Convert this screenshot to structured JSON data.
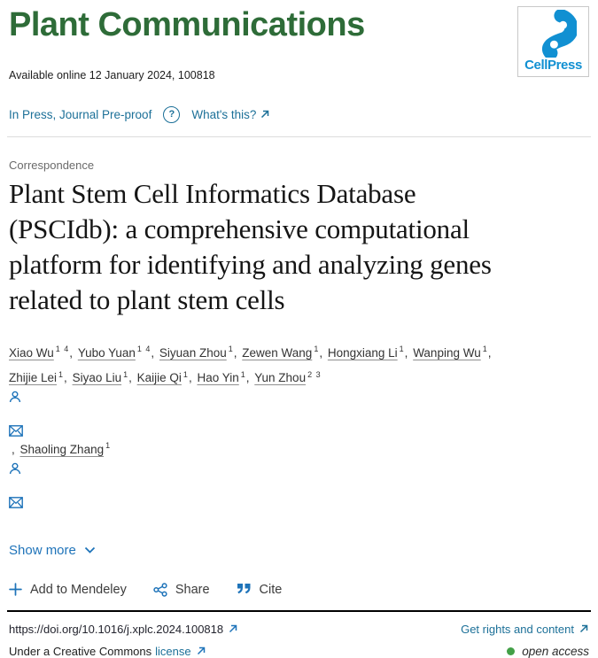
{
  "journal": {
    "name": "Plant Communications",
    "availability": "Available online 12 January 2024, 100818",
    "publisher": "CellPress"
  },
  "status_bar": {
    "in_press_label": "In Press, Journal Pre-proof",
    "help_icon": "question-circle-icon",
    "whats_this_label": "What's this?"
  },
  "article": {
    "section_label": "Correspondence",
    "title_lines": {
      "0": "Plant Stem Cell Informatics Database",
      "1": "(PSCIdb): a comprehensive computational",
      "2": "platform for identifying and analyzing genes",
      "3": "related to plant stem cells"
    },
    "authors": [
      {
        "name": "Xiao Wu",
        "sup": "1 4",
        "sep": ", "
      },
      {
        "name": "Yubo Yuan",
        "sup": "1 4",
        "sep": ", "
      },
      {
        "name": "Siyuan Zhou",
        "sup": "1",
        "sep": ", "
      },
      {
        "name": "Zewen Wang",
        "sup": "1",
        "sep": ", "
      },
      {
        "name": "Hongxiang Li",
        "sup": "1",
        "sep": ", "
      },
      {
        "name": "Wanping Wu",
        "sup": "1",
        "sep": ", ",
        "break_after": true
      },
      {
        "name": "Zhijie Lei",
        "sup": "1",
        "sep": ", "
      },
      {
        "name": "Siyao Liu",
        "sup": "1",
        "sep": ", "
      },
      {
        "name": "Kaijie Qi",
        "sup": "1",
        "sep": ", "
      },
      {
        "name": "Hao Yin",
        "sup": "1",
        "sep": ", "
      },
      {
        "name": "Yun Zhou",
        "sup": "2 3",
        "icons": [
          "person-icon",
          "envelope-icon"
        ],
        "sep": ", "
      },
      {
        "name": "Shaoling Zhang",
        "sup": "1",
        "icons": [
          "person-icon",
          "envelope-icon"
        ],
        "sep": ""
      }
    ],
    "show_more_label": "Show more"
  },
  "actions": {
    "mendeley_label": "Add to Mendeley",
    "share_label": "Share",
    "cite_label": "Cite"
  },
  "footer": {
    "doi": "https://doi.org/10.1016/j.xplc.2024.100818",
    "rights_label": "Get rights and content",
    "license_prefix": "Under a Creative Commons",
    "license_link_label": "license",
    "open_access_label": "open access"
  },
  "colors": {
    "brand-green": "#2e6c38",
    "cellpress-blue": "#1190d2",
    "link-teal": "#1c7098",
    "accent-blue": "#1e73b9",
    "text-dark": "#1d1d1d",
    "text-gray": "#6a6a6a",
    "open-access-green": "#43a047",
    "divider-light": "#dcdcdc",
    "divider-dark": "#000000"
  }
}
